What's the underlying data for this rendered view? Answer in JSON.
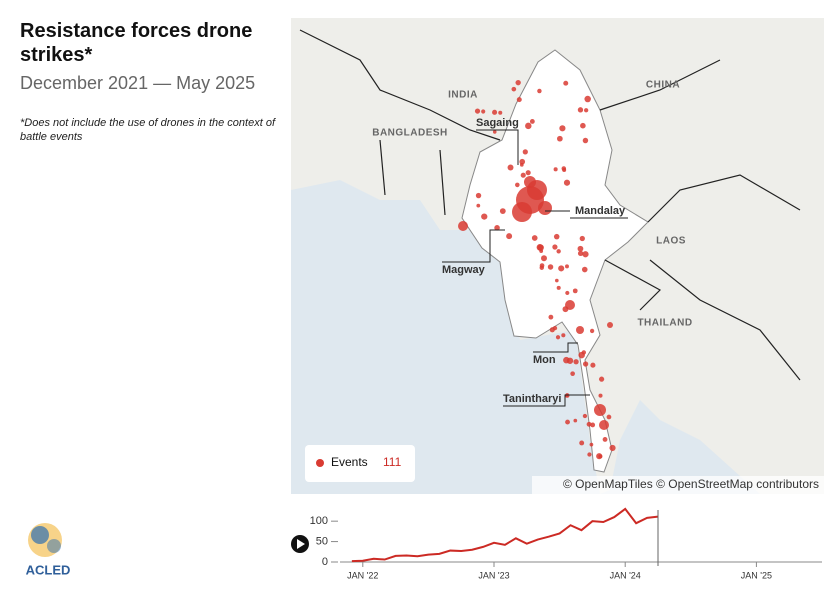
{
  "header": {
    "title": "Resistance forces drone strikes*",
    "subtitle": "December 2021 — May 2025",
    "note": "*Does not include the use of drones in the context of battle events"
  },
  "map": {
    "country_labels": [
      "INDIA",
      "CHINA",
      "BANGLADESH",
      "LAOS",
      "THAILAND"
    ],
    "region_labels": [
      "Sagaing",
      "Mandalay",
      "Magway",
      "Mon",
      "Tanintharyi"
    ],
    "legend": {
      "label": "Events"
    },
    "attribution": "© OpenMapTiles © OpenStreetMap contributors"
  },
  "logo": "ACLED",
  "chart_data": {
    "type": "line",
    "color": "#cc2a24",
    "x": [
      "2021-12",
      "2022-01",
      "2022-02",
      "2022-03",
      "2022-04",
      "2022-05",
      "2022-06",
      "2022-07",
      "2022-08",
      "2022-09",
      "2022-10",
      "2022-11",
      "2022-12",
      "2023-01",
      "2023-02",
      "2023-03",
      "2023-04",
      "2023-05",
      "2023-06",
      "2023-07",
      "2023-08",
      "2023-09",
      "2023-10",
      "2023-11",
      "2023-12",
      "2024-01",
      "2024-02",
      "2024-03",
      "2024-04"
    ],
    "values": [
      2,
      3,
      8,
      6,
      15,
      16,
      14,
      18,
      20,
      28,
      27,
      30,
      37,
      47,
      42,
      58,
      45,
      55,
      62,
      70,
      90,
      78,
      100,
      98,
      110,
      130,
      95,
      108,
      111
    ],
    "xlim": [
      "2021-10",
      "2025-07"
    ],
    "xticks": [
      {
        "value": "2022-01",
        "label": "JAN '22"
      },
      {
        "value": "2023-01",
        "label": "JAN '23"
      },
      {
        "value": "2024-01",
        "label": "JAN '24"
      },
      {
        "value": "2025-01",
        "label": "JAN '25"
      }
    ],
    "ylim": [
      0,
      120
    ],
    "yticks": [
      0,
      50,
      100
    ]
  }
}
